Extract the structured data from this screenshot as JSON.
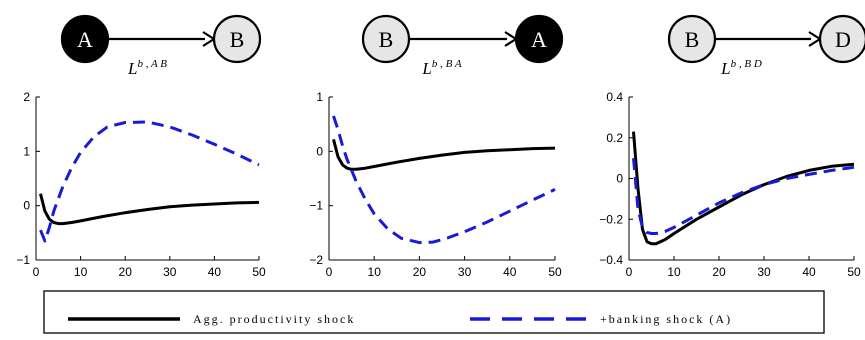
{
  "chart_data": [
    {
      "type": "line",
      "title": "L^{b,AB}",
      "title_main": "L",
      "title_sup": "b , A B",
      "network": {
        "from": "A",
        "to": "B",
        "from_filled": true,
        "to_filled": false
      },
      "xlim": [
        0,
        50
      ],
      "ylim": [
        -1,
        2
      ],
      "xticks": [
        0,
        10,
        20,
        30,
        40,
        50
      ],
      "yticks": [
        -1,
        0,
        1,
        2
      ],
      "xticklabels": [
        "0",
        "10",
        "20",
        "30",
        "40",
        "50"
      ],
      "yticklabels": [
        "−1",
        "0",
        "1",
        "2"
      ],
      "series": [
        {
          "name": "Agg. productivity shock",
          "style": "solid",
          "x": [
            1,
            2,
            3,
            4,
            5,
            6,
            8,
            10,
            15,
            20,
            25,
            30,
            35,
            40,
            45,
            50
          ],
          "y": [
            0.22,
            -0.1,
            -0.25,
            -0.31,
            -0.33,
            -0.33,
            -0.31,
            -0.28,
            -0.2,
            -0.13,
            -0.07,
            -0.02,
            0.01,
            0.03,
            0.05,
            0.06
          ]
        },
        {
          "name": "+banking shock (A)",
          "style": "dashed",
          "x": [
            1,
            2,
            3,
            4,
            6,
            8,
            10,
            13,
            16,
            20,
            25,
            30,
            35,
            40,
            45,
            50
          ],
          "y": [
            -0.45,
            -0.65,
            -0.4,
            -0.1,
            0.35,
            0.7,
            0.98,
            1.27,
            1.45,
            1.53,
            1.54,
            1.45,
            1.3,
            1.13,
            0.95,
            0.75
          ]
        }
      ]
    },
    {
      "type": "line",
      "title": "L^{b,BA}",
      "title_main": "L",
      "title_sup": "b , B A",
      "network": {
        "from": "B",
        "to": "A",
        "from_filled": false,
        "to_filled": true
      },
      "xlim": [
        0,
        50
      ],
      "ylim": [
        -2,
        1
      ],
      "xticks": [
        0,
        10,
        20,
        30,
        40,
        50
      ],
      "yticks": [
        -2,
        -1,
        0,
        1
      ],
      "xticklabels": [
        "0",
        "10",
        "20",
        "30",
        "40",
        "50"
      ],
      "yticklabels": [
        "−2",
        "−1",
        "0",
        "1"
      ],
      "series": [
        {
          "name": "Agg. productivity shock",
          "style": "solid",
          "x": [
            1,
            2,
            3,
            4,
            5,
            6,
            8,
            10,
            15,
            20,
            25,
            30,
            35,
            40,
            45,
            50
          ],
          "y": [
            0.22,
            -0.1,
            -0.25,
            -0.31,
            -0.33,
            -0.33,
            -0.31,
            -0.28,
            -0.2,
            -0.13,
            -0.07,
            -0.02,
            0.01,
            0.03,
            0.05,
            0.06
          ]
        },
        {
          "name": "+banking shock (A)",
          "style": "dashed",
          "x": [
            1,
            2,
            3,
            4,
            6,
            8,
            10,
            13,
            16,
            20,
            23,
            26,
            30,
            35,
            40,
            45,
            50
          ],
          "y": [
            0.65,
            0.4,
            0.1,
            -0.15,
            -0.55,
            -0.88,
            -1.15,
            -1.43,
            -1.6,
            -1.68,
            -1.67,
            -1.6,
            -1.48,
            -1.3,
            -1.1,
            -0.9,
            -0.7
          ]
        }
      ]
    },
    {
      "type": "line",
      "title": "L^{b,BD}",
      "title_main": "L",
      "title_sup": "b , B D",
      "network": {
        "from": "B",
        "to": "D",
        "from_filled": false,
        "to_filled": false
      },
      "xlim": [
        0,
        50
      ],
      "ylim": [
        -0.4,
        0.4
      ],
      "xticks": [
        0,
        10,
        20,
        30,
        40,
        50
      ],
      "yticks": [
        -0.4,
        -0.2,
        0,
        0.2,
        0.4
      ],
      "xticklabels": [
        "0",
        "10",
        "20",
        "30",
        "40",
        "50"
      ],
      "yticklabels": [
        "−0.4",
        "−0.2",
        "0",
        "0.2",
        "0.4"
      ],
      "series": [
        {
          "name": "Agg. productivity shock",
          "style": "solid",
          "x": [
            1,
            2,
            3,
            4,
            5,
            6,
            8,
            10,
            15,
            20,
            25,
            30,
            35,
            40,
            45,
            50
          ],
          "y": [
            0.23,
            -0.05,
            -0.25,
            -0.31,
            -0.32,
            -0.32,
            -0.3,
            -0.27,
            -0.2,
            -0.14,
            -0.08,
            -0.03,
            0.01,
            0.04,
            0.06,
            0.07
          ]
        },
        {
          "name": "+banking shock (A)",
          "style": "dashed",
          "x": [
            1,
            2,
            3,
            4,
            5,
            6,
            8,
            10,
            15,
            20,
            25,
            30,
            35,
            40,
            45,
            50
          ],
          "y": [
            0.1,
            -0.15,
            -0.24,
            -0.265,
            -0.27,
            -0.27,
            -0.26,
            -0.24,
            -0.18,
            -0.12,
            -0.07,
            -0.03,
            0.0,
            0.02,
            0.04,
            0.055
          ]
        }
      ]
    }
  ],
  "legend": {
    "items": [
      {
        "label": "Agg. productivity shock",
        "style": "solid"
      },
      {
        "label": "+banking shock (A)",
        "style": "dashed"
      }
    ],
    "placement": "bottom"
  },
  "colors": {
    "productivity": "#000000",
    "banking": "#1a1ad6",
    "node_filled": "#000000",
    "node_empty": "#e6e6e6"
  }
}
